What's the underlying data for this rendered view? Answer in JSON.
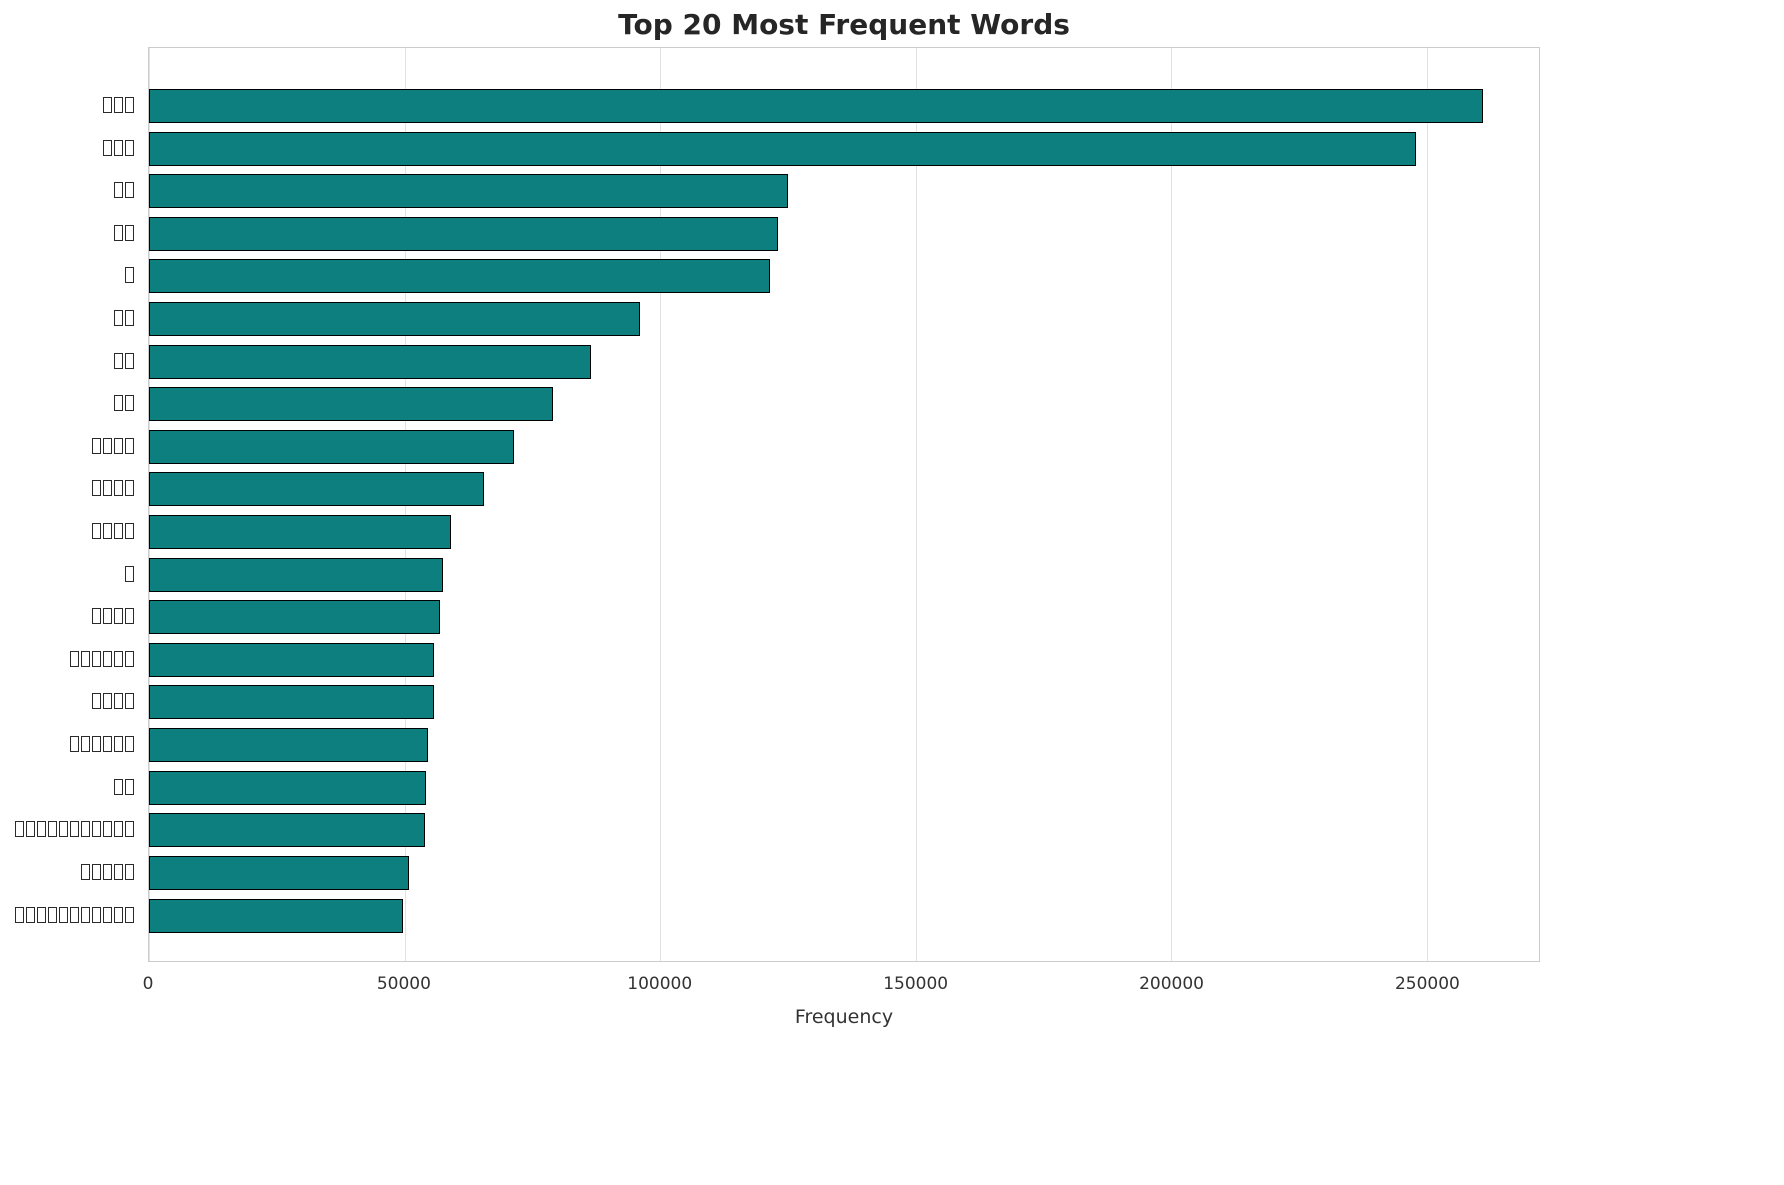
{
  "chart_data": {
    "type": "bar",
    "orientation": "horizontal",
    "title": "Top 20 Most Frequent Words",
    "xlabel": "Frequency",
    "ylabel": "",
    "xlim": [
      0,
      272000
    ],
    "xticks": [
      0,
      50000,
      100000,
      150000,
      200000,
      250000
    ],
    "xtick_labels": [
      "0",
      "50000",
      "100000",
      "150000",
      "200000",
      "250000"
    ],
    "grid": "vertical",
    "legend": "none",
    "bar_color": "#0e7f7f",
    "bar_edge_color": "#000000",
    "categories": [
      "□□□",
      "□□□",
      "□□",
      "□□",
      "□",
      "□□",
      "□□",
      "□□",
      "□□□□",
      "□□□□",
      "□□□□",
      "□",
      "□□□□",
      "□□□□□□",
      "□□□□",
      "□□□□□□",
      "□□",
      "□□□□□□□□□□□",
      "□□□□□",
      "□□□□□□□□□□□"
    ],
    "values": [
      261000,
      248000,
      125000,
      123000,
      121500,
      96000,
      86500,
      79000,
      71500,
      65500,
      59000,
      57500,
      57000,
      55800,
      55700,
      54500,
      54300,
      54000,
      50800,
      49800
    ]
  }
}
